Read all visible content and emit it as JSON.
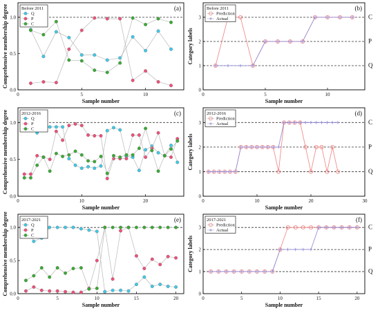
{
  "figure": {
    "panels": [
      {
        "id": "a",
        "label": "(a)",
        "caption": "Before 2011",
        "xlabel": "Sample number",
        "ylabel": "Comprehensive membership degree"
      },
      {
        "id": "b",
        "label": "(b)",
        "caption": "Before 2011",
        "xlabel": "Sample number",
        "ylabel": "Category labels"
      },
      {
        "id": "c",
        "label": "(c)",
        "caption": "2012-2016",
        "xlabel": "Sample number",
        "ylabel": "Comprehensive membership degree"
      },
      {
        "id": "d",
        "label": "(d)",
        "caption": "2012-2016",
        "xlabel": "Sample number",
        "ylabel": "Category labels"
      },
      {
        "id": "e",
        "label": "(e)",
        "caption": "2017-2021",
        "xlabel": "Sample number",
        "ylabel": "Comprehensive membership degree"
      },
      {
        "id": "f",
        "label": "(f)",
        "caption": "2017-2021",
        "xlabel": "Sample number",
        "ylabel": "Category labels"
      }
    ]
  },
  "chart_data": [
    {
      "panel": "a",
      "type": "line",
      "title": "Before 2011",
      "xlabel": "Sample number",
      "ylabel": "Comprehensive membership degree",
      "xlim": [
        0,
        13
      ],
      "ylim": [
        0,
        1.2
      ],
      "xticks": [
        0,
        5,
        10
      ],
      "yticks": [
        0.0,
        0.5,
        1.0
      ],
      "reference_line": 1.0,
      "legend": "top-left",
      "x": [
        1,
        2,
        3,
        4,
        5,
        6,
        7,
        8,
        9,
        10,
        11,
        12
      ],
      "series": [
        {
          "name": "Q",
          "color": "#3ec9e6",
          "values": [
            0.83,
            0.46,
            0.8,
            0.72,
            0.48,
            0.48,
            0.41,
            0.44,
            0.73,
            0.54,
            0.81,
            0.56
          ]
        },
        {
          "name": "P",
          "color": "#f0507a",
          "values": [
            0.09,
            0.11,
            0.1,
            0.56,
            0.82,
            0.99,
            0.98,
            0.98,
            0.13,
            0.26,
            0.11,
            0.06
          ]
        },
        {
          "name": "C",
          "color": "#3aaa35",
          "values": [
            0.82,
            0.76,
            0.94,
            0.41,
            0.4,
            0.27,
            0.24,
            0.37,
            0.99,
            0.9,
            0.98,
            0.93
          ]
        }
      ]
    },
    {
      "panel": "b",
      "type": "line",
      "title": "Before 2011",
      "xlabel": "Sample number",
      "ylabel": "Category labels",
      "xlim": [
        0,
        13
      ],
      "ylim": [
        0,
        3.6
      ],
      "xticks": [
        0,
        5,
        10
      ],
      "yticks": [
        0,
        1,
        2,
        3
      ],
      "category_labels": {
        "1": "Q",
        "2": "P",
        "3": "C"
      },
      "legend": "top-left",
      "x": [
        1,
        2,
        3,
        4,
        5,
        6,
        7,
        8,
        9,
        10,
        11,
        12
      ],
      "series": [
        {
          "name": "Prediction",
          "color": "#f08080",
          "values": [
            1,
            3,
            3,
            1,
            2,
            2,
            2,
            2,
            3,
            3,
            3,
            3
          ]
        },
        {
          "name": "Actual",
          "color": "#8a84d6",
          "values": [
            1,
            1,
            1,
            1,
            2,
            2,
            2,
            2,
            3,
            3,
            3,
            3
          ]
        }
      ]
    },
    {
      "panel": "c",
      "type": "line",
      "title": "2012-2016",
      "xlabel": "Sample number",
      "ylabel": "Comprehensive membership degree",
      "xlim": [
        0,
        26
      ],
      "ylim": [
        0,
        1.2
      ],
      "xticks": [
        0,
        10,
        20
      ],
      "yticks": [
        0.0,
        0.5,
        1.0
      ],
      "reference_line": 1.0,
      "legend": "top-left",
      "x": [
        1,
        2,
        3,
        4,
        5,
        6,
        7,
        8,
        9,
        10,
        11,
        12,
        13,
        14,
        15,
        16,
        17,
        18,
        19,
        20,
        21,
        22,
        23,
        24,
        25
      ],
      "series": [
        {
          "name": "Q",
          "color": "#3ec9e6",
          "values": [
            0.95,
            0.94,
            0.86,
            0.95,
            0.94,
            0.94,
            0.94,
            0.51,
            0.42,
            0.38,
            0.4,
            0.38,
            0.41,
            0.89,
            0.93,
            0.9,
            0.54,
            0.53,
            0.35,
            0.63,
            0.68,
            0.59,
            0.55,
            0.69,
            0.46
          ]
        },
        {
          "name": "P",
          "color": "#f0507a",
          "values": [
            0.3,
            0.3,
            0.55,
            0.53,
            0.5,
            0.88,
            0.76,
            0.96,
            0.98,
            0.96,
            0.83,
            0.82,
            0.82,
            0.24,
            0.51,
            0.51,
            0.51,
            0.83,
            0.83,
            0.53,
            0.65,
            0.86,
            0.55,
            0.53,
            0.78
          ]
        },
        {
          "name": "C",
          "color": "#3aaa35",
          "values": [
            0.25,
            0.25,
            0.42,
            0.53,
            0.34,
            0.58,
            0.54,
            0.56,
            0.61,
            0.56,
            0.48,
            0.47,
            0.54,
            0.31,
            0.55,
            0.53,
            0.56,
            0.56,
            0.65,
            0.92,
            0.62,
            0.34,
            0.55,
            0.64,
            0.75
          ]
        }
      ]
    },
    {
      "panel": "d",
      "type": "line",
      "title": "2012-2016",
      "xlabel": "Sample number",
      "ylabel": "Category labels",
      "xlim": [
        0,
        30
      ],
      "ylim": [
        0,
        3.6
      ],
      "xticks": [
        0,
        10,
        20,
        30
      ],
      "yticks": [
        0,
        1,
        2,
        3
      ],
      "category_labels": {
        "1": "Q",
        "2": "P",
        "3": "C"
      },
      "legend": "top-left",
      "x": [
        1,
        2,
        3,
        4,
        5,
        6,
        7,
        8,
        9,
        10,
        11,
        12,
        13,
        14,
        15,
        16,
        17,
        18,
        19,
        20,
        21,
        22,
        23,
        24,
        25
      ],
      "series": [
        {
          "name": "Prediction",
          "color": "#f08080",
          "values": [
            1,
            1,
            1,
            1,
            1,
            1,
            2,
            2,
            2,
            2,
            2,
            2,
            2,
            1,
            3,
            3,
            3,
            3,
            2,
            1,
            2,
            2,
            1,
            2,
            1
          ]
        },
        {
          "name": "Actual",
          "color": "#8a84d6",
          "values": [
            1,
            1,
            1,
            1,
            1,
            1,
            2,
            2,
            2,
            2,
            2,
            2,
            2,
            2,
            3,
            3,
            3,
            3,
            3,
            3,
            3,
            3,
            3,
            3,
            3
          ]
        }
      ]
    },
    {
      "panel": "e",
      "type": "line",
      "title": "2017-2021",
      "xlabel": "Sample number",
      "ylabel": "Comprehensive membership degree",
      "xlim": [
        0,
        21
      ],
      "ylim": [
        0,
        1.2
      ],
      "xticks": [
        0,
        5,
        10,
        15,
        20
      ],
      "yticks": [
        0.0,
        0.5,
        1.0
      ],
      "reference_line": 1.0,
      "legend": "top-left",
      "x": [
        1,
        2,
        3,
        4,
        5,
        6,
        7,
        8,
        9,
        10,
        11,
        12,
        13,
        14,
        15,
        16,
        17,
        18,
        19,
        20
      ],
      "series": [
        {
          "name": "Q",
          "color": "#3ec9e6",
          "values": [
            1.0,
            0.79,
            0.84,
            1.0,
            1.0,
            1.0,
            1.0,
            0.98,
            0.96,
            0.94,
            0.03,
            0.05,
            0.05,
            0.04,
            0.14,
            0.25,
            0.11,
            0.14,
            0.11,
            0.1
          ]
        },
        {
          "name": "P",
          "color": "#f0507a",
          "values": [
            0.04,
            0.1,
            0.05,
            0.04,
            0.04,
            0.03,
            0.02,
            0.02,
            0.08,
            0.5,
            1.0,
            0.22,
            0.95,
            1.0,
            0.57,
            0.38,
            0.52,
            0.44,
            0.56,
            0.54
          ]
        },
        {
          "name": "C",
          "color": "#3aaa35",
          "values": [
            0.2,
            0.27,
            0.39,
            0.25,
            0.39,
            0.31,
            0.38,
            0.39,
            0.07,
            0.08,
            1.0,
            1.0,
            1.0,
            1.0,
            1.0,
            1.0,
            1.0,
            1.0,
            1.0,
            1.0
          ]
        }
      ]
    },
    {
      "panel": "f",
      "type": "line",
      "title": "2017-2021",
      "xlabel": "Sample number",
      "ylabel": "Category labels",
      "xlim": [
        0,
        21
      ],
      "ylim": [
        0,
        3.6
      ],
      "xticks": [
        0,
        5,
        10,
        15,
        20
      ],
      "yticks": [
        0,
        1,
        2,
        3
      ],
      "category_labels": {
        "1": "Q",
        "2": "P",
        "3": "C"
      },
      "legend": "top-left",
      "x": [
        1,
        2,
        3,
        4,
        5,
        6,
        7,
        8,
        9,
        10,
        11,
        12,
        13,
        14,
        15,
        16,
        17,
        18,
        19,
        20
      ],
      "series": [
        {
          "name": "Prediction",
          "color": "#f08080",
          "values": [
            1,
            1,
            1,
            1,
            1,
            1,
            1,
            1,
            1,
            2,
            3,
            3,
            3,
            3,
            3,
            3,
            3,
            3,
            3,
            3
          ]
        },
        {
          "name": "Actual",
          "color": "#8a84d6",
          "values": [
            1,
            1,
            1,
            1,
            1,
            1,
            1,
            1,
            1,
            2,
            2,
            2,
            2,
            2,
            3,
            3,
            3,
            3,
            3,
            3
          ]
        }
      ]
    }
  ]
}
